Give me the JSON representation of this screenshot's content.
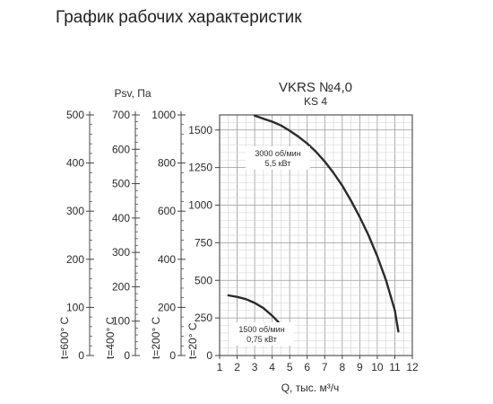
{
  "page": {
    "title": "График рабочих характеристик"
  },
  "chart_data": {
    "type": "line",
    "title": "VKRS №4,0",
    "subtitle": "KS 4",
    "xlabel": "Q, тыс. м³/ч",
    "ylabel": "Psv, Па",
    "x_ticks": [
      1,
      2,
      3,
      4,
      5,
      6,
      7,
      8,
      9,
      10,
      11,
      12
    ],
    "xlim": [
      1,
      12
    ],
    "grid": true,
    "main_axis": {
      "label": "t=20° C",
      "ylim": [
        0,
        1600
      ],
      "ticks": [
        0,
        250,
        500,
        750,
        1000,
        1250,
        1500
      ]
    },
    "aux_axes": [
      {
        "label": "t=600° C",
        "max": 500,
        "ticks": [
          0,
          100,
          200,
          300,
          400,
          500
        ]
      },
      {
        "label": "t=400° C",
        "max": 700,
        "ticks": [
          0,
          100,
          200,
          300,
          400,
          500,
          600,
          700
        ]
      },
      {
        "label": "t=200° C",
        "max": 1000,
        "ticks": [
          0,
          200,
          400,
          600,
          800,
          1000
        ]
      }
    ],
    "series": [
      {
        "name": "3000 об/мин 5,5 кВт",
        "label_line1": "3000 об/мин",
        "label_line2": "5,5 кВт",
        "x": [
          3.0,
          3.5,
          4.0,
          4.5,
          5.0,
          5.5,
          6.0,
          6.5,
          7.0,
          7.5,
          8.0,
          8.5,
          9.0,
          9.5,
          10.0,
          10.5,
          11.0,
          11.2
        ],
        "y": [
          1595,
          1575,
          1555,
          1530,
          1495,
          1455,
          1410,
          1355,
          1290,
          1215,
          1130,
          1030,
          920,
          800,
          660,
          500,
          300,
          160
        ]
      },
      {
        "name": "1500 об/мин 0,75 кВт",
        "label_line1": "1500 об/мин",
        "label_line2": "0,75 кВт",
        "x": [
          1.5,
          2.0,
          2.5,
          3.0,
          3.5,
          4.0,
          4.5,
          5.0
        ],
        "y": [
          400,
          390,
          375,
          350,
          315,
          265,
          205,
          150
        ]
      }
    ]
  }
}
